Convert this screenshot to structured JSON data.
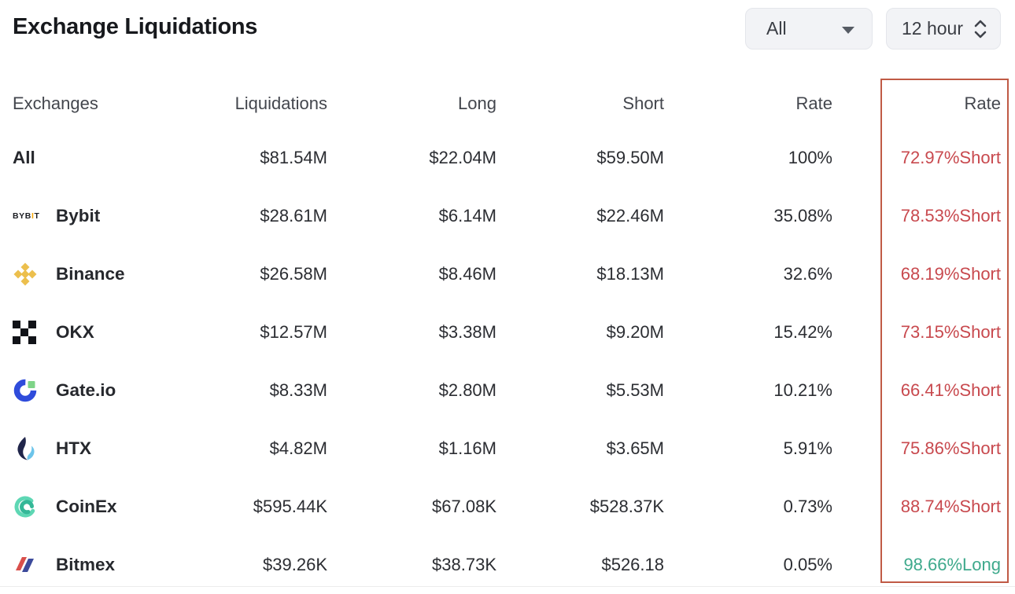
{
  "header": {
    "title": "Exchange Liquidations",
    "filter_dropdown": {
      "value": "All",
      "icon": "chevron-down-icon"
    },
    "interval_dropdown": {
      "value": "12 hour",
      "icon": "stepper-icon"
    }
  },
  "table": {
    "columns": [
      "Exchanges",
      "Liquidations",
      "Long",
      "Short",
      "Rate",
      "Rate"
    ],
    "rows": [
      {
        "exchange": "All",
        "icon": "none",
        "liquidations": "$81.54M",
        "long": "$22.04M",
        "short": "$59.50M",
        "rate": "100%",
        "dominance": "72.97%Short",
        "dominance_side": "short"
      },
      {
        "exchange": "Bybit",
        "icon": "bybit",
        "liquidations": "$28.61M",
        "long": "$6.14M",
        "short": "$22.46M",
        "rate": "35.08%",
        "dominance": "78.53%Short",
        "dominance_side": "short"
      },
      {
        "exchange": "Binance",
        "icon": "binance",
        "liquidations": "$26.58M",
        "long": "$8.46M",
        "short": "$18.13M",
        "rate": "32.6%",
        "dominance": "68.19%Short",
        "dominance_side": "short"
      },
      {
        "exchange": "OKX",
        "icon": "okx",
        "liquidations": "$12.57M",
        "long": "$3.38M",
        "short": "$9.20M",
        "rate": "15.42%",
        "dominance": "73.15%Short",
        "dominance_side": "short"
      },
      {
        "exchange": "Gate.io",
        "icon": "gateio",
        "liquidations": "$8.33M",
        "long": "$2.80M",
        "short": "$5.53M",
        "rate": "10.21%",
        "dominance": "66.41%Short",
        "dominance_side": "short"
      },
      {
        "exchange": "HTX",
        "icon": "htx",
        "liquidations": "$4.82M",
        "long": "$1.16M",
        "short": "$3.65M",
        "rate": "5.91%",
        "dominance": "75.86%Short",
        "dominance_side": "short"
      },
      {
        "exchange": "CoinEx",
        "icon": "coinex",
        "liquidations": "$595.44K",
        "long": "$67.08K",
        "short": "$528.37K",
        "rate": "0.73%",
        "dominance": "88.74%Short",
        "dominance_side": "short"
      },
      {
        "exchange": "Bitmex",
        "icon": "bitmex",
        "liquidations": "$39.26K",
        "long": "$38.73K",
        "short": "$526.18",
        "rate": "0.05%",
        "dominance": "98.66%Long",
        "dominance_side": "long"
      }
    ],
    "colors": {
      "short_text": "#c8494e",
      "long_text": "#3ea98c",
      "highlight_border": "#c05a45"
    }
  }
}
